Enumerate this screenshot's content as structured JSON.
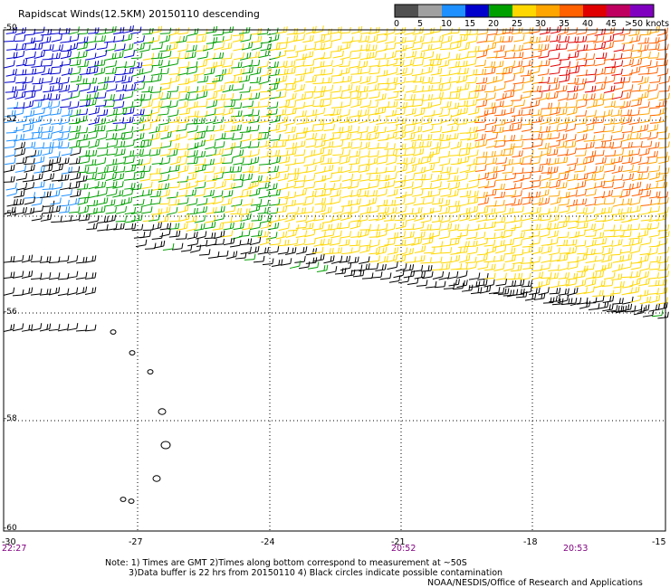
{
  "title": "Rapidscat Winds(12.5KM) 20150110 descending",
  "legend": {
    "labels": [
      "0",
      "5",
      "10",
      "15",
      "20",
      "25",
      "30",
      "35",
      "40",
      "45",
      ">50 knots"
    ],
    "colors": [
      "#505050",
      "#a0a0a0",
      "#1e90ff",
      "#0000cd",
      "#00a000",
      "#ffd700",
      "#ffa500",
      "#ff6000",
      "#e00000",
      "#c00060",
      "#8000c0"
    ]
  },
  "axes": {
    "lat_labels": [
      "-50",
      "-52",
      "-54",
      "-56",
      "-58",
      "-60"
    ],
    "lon_labels": [
      "-30",
      "-27",
      "-24",
      "-21",
      "-18",
      "-15"
    ],
    "time_labels": [
      "22:27",
      "20:52",
      "20:53"
    ]
  },
  "notes": {
    "line1": "Note: 1) Times are GMT 2)Times along bottom correspond to measurement at ~50S",
    "line2": "3)Data buffer is 22 hrs from 20150110 4) Black circles indicate possible contamination",
    "credit": "NOAA/NESDIS/Office of Research and Applications"
  }
}
